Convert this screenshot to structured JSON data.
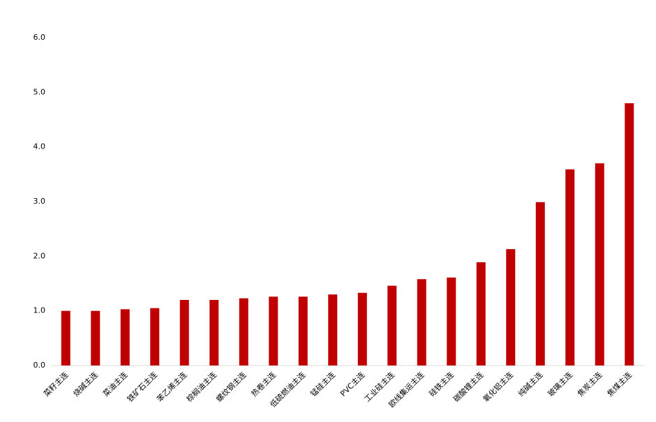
{
  "chart_data": {
    "type": "bar",
    "categories": [
      "菜籽主连",
      "烧碱主连",
      "菜油主连",
      "铁矿石主连",
      "苯乙烯主连",
      "棕榈油主连",
      "螺纹钢主连",
      "热卷主连",
      "低硫燃油主连",
      "锰硅主连",
      "PVC主连",
      "工业硅主连",
      "欧线集运主连",
      "硅铁主连",
      "碳酸锂主连",
      "氧化铝主连",
      "纯碱主连",
      "玻璃主连",
      "焦炭主连",
      "焦煤主连"
    ],
    "values": [
      1.0,
      1.0,
      1.03,
      1.05,
      1.2,
      1.2,
      1.23,
      1.26,
      1.26,
      1.3,
      1.33,
      1.46,
      1.58,
      1.61,
      1.89,
      2.13,
      2.99,
      3.59,
      3.7,
      4.8
    ],
    "color": "#c00000",
    "ylim": [
      0,
      6
    ],
    "yticks": [
      {
        "value": 0,
        "label": "0.0"
      },
      {
        "value": 1,
        "label": "1.0"
      },
      {
        "value": 2,
        "label": "2.0"
      },
      {
        "value": 3,
        "label": "3.0"
      },
      {
        "value": 4,
        "label": "4.0"
      },
      {
        "value": 5,
        "label": "5.0"
      },
      {
        "value": 6,
        "label": "6.0"
      }
    ],
    "grid": false
  }
}
